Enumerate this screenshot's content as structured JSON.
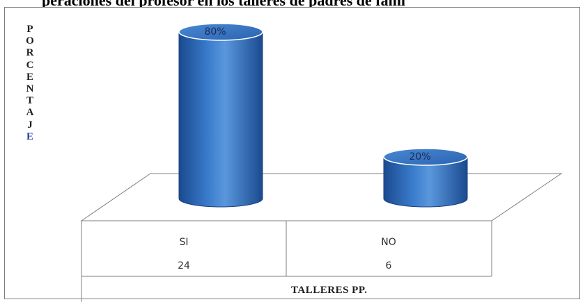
{
  "title_partial": "peraciones del profesor en los talleres de padres de fami",
  "ylabel_letters": [
    "P",
    "O",
    "R",
    "C",
    "E",
    "N",
    "T",
    "A",
    "J",
    "E"
  ],
  "xtitle": "TALLERES PP.",
  "colors": {
    "bar": "#2f6dbd",
    "bar_dark": "#1c4f96",
    "bar_top": "#3f7fcf",
    "highlight": "#7fb0e8"
  },
  "chart_data": {
    "type": "bar",
    "categories": [
      "SI",
      "NO"
    ],
    "counts": [
      24,
      6
    ],
    "values": [
      80,
      20
    ],
    "data_labels": [
      "80%",
      "20%"
    ],
    "ylabel": "PORCENTAJE",
    "xlabel": "TALLERES PP.",
    "ylim": [
      0,
      80
    ],
    "grid": false,
    "style": "3d-cylinder"
  }
}
